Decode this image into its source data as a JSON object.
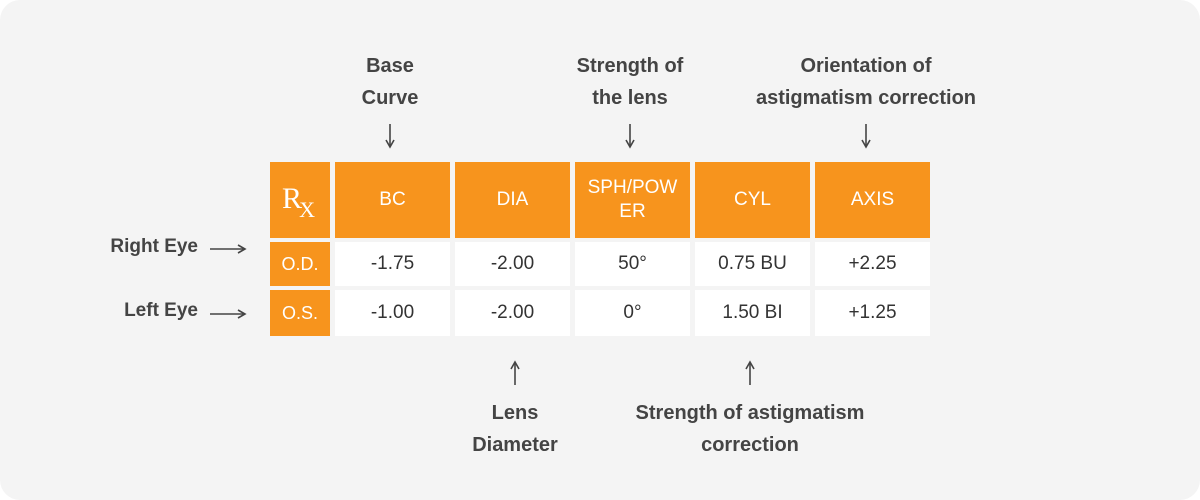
{
  "annotations": {
    "top": [
      "Base Curve",
      "Strength of the lens",
      "Orientation of astigmatism correction"
    ],
    "bottom": [
      "Lens Diameter",
      "Strength of astigmatism correction"
    ],
    "left": [
      "Right Eye",
      "Left Eye"
    ]
  },
  "table": {
    "rx": {
      "r": "R",
      "x": "X"
    },
    "header": [
      "BC",
      "DIA",
      "SPH/POWER",
      "CYL",
      "AXIS"
    ],
    "rows": [
      [
        "O.D.",
        "-1.75",
        "-2.00",
        "50°",
        "0.75 BU",
        "+2.25"
      ],
      [
        "O.S.",
        "-1.00",
        "-2.00",
        "0°",
        "1.50 BI",
        "+1.25"
      ]
    ]
  }
}
